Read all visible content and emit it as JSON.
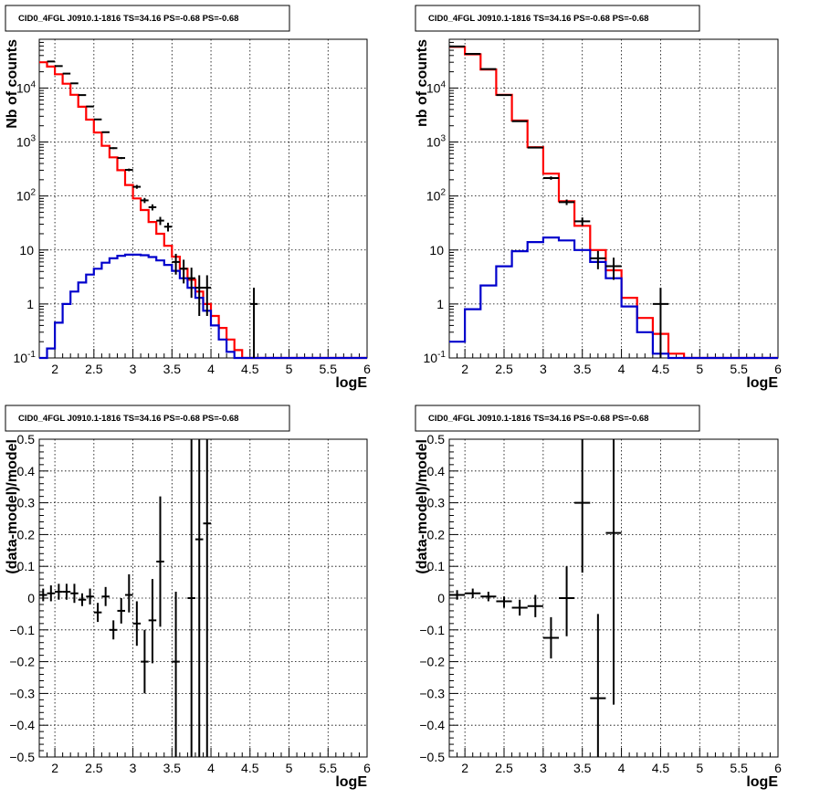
{
  "page": {
    "background": "#ffffff",
    "grid_color": "#000000"
  },
  "chart_data": [
    {
      "type": "line",
      "title": "CID0_4FGL J0910.1-1816 TS=34.16 PS=-0.68 PS=-0.68",
      "xlabel": "logE",
      "ylabel": "Nb of counts",
      "xlim": [
        1.8,
        6
      ],
      "ylim": [
        0.1,
        80000
      ],
      "log_y": true,
      "grid": true,
      "x_ticks": [
        "2",
        "2.5",
        "3",
        "3.5",
        "4",
        "4.5",
        "5",
        "5.5",
        "6"
      ],
      "y_ticks": [
        "10^-1",
        "1",
        "10",
        "10^2",
        "10^3",
        "10^4"
      ],
      "bin_edges": [
        1.8,
        1.9,
        2.0,
        2.1,
        2.2,
        2.3,
        2.4,
        2.5,
        2.6,
        2.7,
        2.8,
        2.9,
        3.0,
        3.1,
        3.2,
        3.3,
        3.4,
        3.5,
        3.6,
        3.7,
        3.8,
        3.9,
        4.0,
        4.1,
        4.2,
        4.3,
        4.4,
        4.5,
        4.6,
        4.7,
        4.8,
        4.9,
        5.0,
        5.1,
        5.2,
        5.3,
        5.4,
        5.5,
        5.6,
        5.7,
        5.8,
        5.9,
        6.0
      ],
      "series": [
        {
          "role": "total_model",
          "color": "#ff0000",
          "values": [
            30000,
            25000,
            18000,
            12000,
            7500,
            4500,
            2600,
            1500,
            850,
            520,
            300,
            160,
            90,
            55,
            33,
            20,
            12,
            7.5,
            4.5,
            2.8,
            1.7,
            1.0,
            0.6,
            0.36,
            0.22,
            0.14,
            0.1,
            0.1,
            0.1,
            0.1,
            0.1,
            0.1,
            0.1,
            0.1,
            0.1,
            0.1,
            0.1,
            0.1,
            0.1,
            0.1,
            0.1,
            0.1
          ]
        },
        {
          "role": "source_model",
          "color": "#0000cc",
          "values": [
            0.1,
            0.15,
            0.45,
            1.0,
            1.7,
            2.5,
            3.5,
            4.5,
            5.8,
            7.0,
            7.8,
            8.2,
            8.2,
            8.0,
            7.4,
            6.4,
            5.3,
            4.1,
            3.0,
            2.0,
            1.3,
            0.75,
            0.4,
            0.22,
            0.13,
            0.1,
            0.1,
            0.1,
            0.1,
            0.1,
            0.1,
            0.1,
            0.1,
            0.1,
            0.1,
            0.1,
            0.1,
            0.1,
            0.1,
            0.1,
            0.1,
            0.1
          ]
        }
      ],
      "points": [
        {
          "x": 1.95,
          "y": 31000,
          "err": 170
        },
        {
          "x": 2.05,
          "y": 25500,
          "err": 160
        },
        {
          "x": 2.15,
          "y": 18500,
          "err": 136
        },
        {
          "x": 2.25,
          "y": 12200,
          "err": 110
        },
        {
          "x": 2.35,
          "y": 7400,
          "err": 86
        },
        {
          "x": 2.45,
          "y": 4550,
          "err": 67
        },
        {
          "x": 2.55,
          "y": 2620,
          "err": 51
        },
        {
          "x": 2.65,
          "y": 1520,
          "err": 39
        },
        {
          "x": 2.75,
          "y": 770,
          "err": 28
        },
        {
          "x": 2.85,
          "y": 505,
          "err": 22
        },
        {
          "x": 2.95,
          "y": 305,
          "err": 17
        },
        {
          "x": 3.05,
          "y": 148,
          "err": 12
        },
        {
          "x": 3.15,
          "y": 83,
          "err": 9
        },
        {
          "x": 3.25,
          "y": 62,
          "err": 8
        },
        {
          "x": 3.35,
          "y": 35,
          "err": 6
        },
        {
          "x": 3.45,
          "y": 27,
          "err": 5
        },
        {
          "x": 3.55,
          "y": 6,
          "err": 2.5
        },
        {
          "x": 3.65,
          "y": 4.5,
          "err": 2.1
        },
        {
          "x": 3.75,
          "y": 3,
          "err": 1.7
        },
        {
          "x": 3.85,
          "y": 2,
          "err": 1.4
        },
        {
          "x": 3.95,
          "y": 2,
          "err": 1.4
        },
        {
          "x": 4.55,
          "y": 1,
          "err": 1.0
        }
      ]
    },
    {
      "type": "line",
      "title": "CID0_4FGL J0910.1-1816 TS=34.16 PS=-0.68 PS=-0.68",
      "xlabel": "logE",
      "ylabel": "nb of counts",
      "xlim": [
        1.8,
        6
      ],
      "ylim": [
        0.1,
        80000
      ],
      "log_y": true,
      "grid": true,
      "x_ticks": [
        "2",
        "2.5",
        "3",
        "3.5",
        "4",
        "4.5",
        "5",
        "5.5",
        "6"
      ],
      "y_ticks": [
        "10^-1",
        "1",
        "10",
        "10^2",
        "10^3",
        "10^4"
      ],
      "bin_edges": [
        1.8,
        2.0,
        2.2,
        2.4,
        2.6,
        2.8,
        3.0,
        3.2,
        3.4,
        3.6,
        3.8,
        4.0,
        4.2,
        4.4,
        4.6,
        4.8,
        5.0,
        5.2,
        5.4,
        5.6,
        5.8,
        6.0
      ],
      "series": [
        {
          "role": "total_model",
          "color": "#ff0000",
          "values": [
            58000,
            42000,
            22000,
            7500,
            2500,
            800,
            260,
            80,
            28,
            10,
            4.2,
            1.3,
            0.55,
            0.28,
            0.12,
            0.1,
            0.1,
            0.1,
            0.1,
            0.1,
            0.1
          ]
        },
        {
          "role": "source_model",
          "color": "#0000cc",
          "values": [
            0.2,
            0.8,
            2.2,
            5,
            9.5,
            14,
            17,
            15,
            10,
            6,
            3,
            0.9,
            0.3,
            0.12,
            0.1,
            0.1,
            0.1,
            0.1,
            0.1,
            0.1,
            0.1
          ]
        }
      ],
      "points": [
        {
          "x": 1.9,
          "y": 59000,
          "err": 240
        },
        {
          "x": 2.1,
          "y": 43000,
          "err": 207
        },
        {
          "x": 2.3,
          "y": 22500,
          "err": 150
        },
        {
          "x": 2.5,
          "y": 7400,
          "err": 86
        },
        {
          "x": 2.7,
          "y": 2430,
          "err": 49
        },
        {
          "x": 2.9,
          "y": 790,
          "err": 28
        },
        {
          "x": 3.1,
          "y": 215,
          "err": 15
        },
        {
          "x": 3.3,
          "y": 77,
          "err": 9
        },
        {
          "x": 3.5,
          "y": 34,
          "err": 6
        },
        {
          "x": 3.7,
          "y": 7,
          "err": 2.6
        },
        {
          "x": 3.9,
          "y": 5,
          "err": 2.2
        },
        {
          "x": 4.5,
          "y": 1,
          "err": 1.0
        }
      ]
    },
    {
      "type": "scatter",
      "title": "CID0_4FGL J0910.1-1816 TS=34.16 PS=-0.68 PS=-0.68",
      "xlabel": "logE",
      "ylabel": "(data-model)/model",
      "xlim": [
        1.8,
        6
      ],
      "ylim": [
        -0.5,
        0.5
      ],
      "grid": true,
      "x_ticks": [
        "2",
        "2.5",
        "3",
        "3.5",
        "4",
        "4.5",
        "5",
        "5.5",
        "6"
      ],
      "y_ticks": [
        "-0.5",
        "-0.4",
        "-0.3",
        "-0.2",
        "-0.1",
        "0",
        "0.1",
        "0.2",
        "0.3",
        "0.4",
        "0.5"
      ],
      "x_half_width": 0.05,
      "points": [
        {
          "x": 1.85,
          "y": 0.01,
          "lo": -0.01,
          "hi": 0.03
        },
        {
          "x": 1.95,
          "y": 0.015,
          "lo": -0.01,
          "hi": 0.04
        },
        {
          "x": 2.05,
          "y": 0.02,
          "lo": -0.005,
          "hi": 0.045
        },
        {
          "x": 2.15,
          "y": 0.02,
          "lo": -0.005,
          "hi": 0.045
        },
        {
          "x": 2.25,
          "y": 0.015,
          "lo": -0.015,
          "hi": 0.045
        },
        {
          "x": 2.35,
          "y": -0.005,
          "lo": -0.025,
          "hi": 0.015
        },
        {
          "x": 2.45,
          "y": 0.005,
          "lo": -0.02,
          "hi": 0.03
        },
        {
          "x": 2.55,
          "y": -0.045,
          "lo": -0.075,
          "hi": -0.015
        },
        {
          "x": 2.65,
          "y": 0.005,
          "lo": -0.025,
          "hi": 0.035
        },
        {
          "x": 2.75,
          "y": -0.1,
          "lo": -0.13,
          "hi": -0.07
        },
        {
          "x": 2.85,
          "y": -0.04,
          "lo": -0.08,
          "hi": 0.0
        },
        {
          "x": 2.95,
          "y": 0.01,
          "lo": -0.045,
          "hi": 0.075
        },
        {
          "x": 3.05,
          "y": -0.08,
          "lo": -0.15,
          "hi": -0.01
        },
        {
          "x": 3.15,
          "y": -0.2,
          "lo": -0.3,
          "hi": -0.1
        },
        {
          "x": 3.25,
          "y": -0.07,
          "lo": -0.205,
          "hi": 0.06
        },
        {
          "x": 3.35,
          "y": 0.115,
          "lo": -0.09,
          "hi": 0.32
        },
        {
          "x": 3.55,
          "y": -0.2,
          "lo": -0.5,
          "hi": 0.02
        },
        {
          "x": 3.75,
          "y": 0.0,
          "lo": -0.5,
          "hi": 0.5
        },
        {
          "x": 3.85,
          "y": 0.185,
          "lo": -0.5,
          "hi": 0.5
        },
        {
          "x": 3.95,
          "y": 0.235,
          "lo": -0.5,
          "hi": 0.5
        }
      ]
    },
    {
      "type": "scatter",
      "title": "CID0_4FGL J0910.1-1816 TS=34.16 PS=-0.68 PS=-0.68",
      "xlabel": "logE",
      "ylabel": "(data-model)/model",
      "xlim": [
        1.8,
        6
      ],
      "ylim": [
        -0.5,
        0.5
      ],
      "grid": true,
      "x_ticks": [
        "2",
        "2.5",
        "3",
        "3.5",
        "4",
        "4.5",
        "5",
        "5.5",
        "6"
      ],
      "y_ticks": [
        "-0.5",
        "-0.4",
        "-0.3",
        "-0.2",
        "-0.1",
        "0",
        "0.1",
        "0.2",
        "0.3",
        "0.4",
        "0.5"
      ],
      "x_half_width": 0.1,
      "points": [
        {
          "x": 1.9,
          "y": 0.01,
          "lo": -0.005,
          "hi": 0.025
        },
        {
          "x": 2.1,
          "y": 0.015,
          "lo": 0.0,
          "hi": 0.03
        },
        {
          "x": 2.3,
          "y": 0.005,
          "lo": -0.01,
          "hi": 0.02
        },
        {
          "x": 2.5,
          "y": -0.01,
          "lo": -0.03,
          "hi": 0.005
        },
        {
          "x": 2.7,
          "y": -0.03,
          "lo": -0.055,
          "hi": -0.005
        },
        {
          "x": 2.9,
          "y": -0.025,
          "lo": -0.06,
          "hi": 0.01
        },
        {
          "x": 3.1,
          "y": -0.125,
          "lo": -0.19,
          "hi": -0.06
        },
        {
          "x": 3.3,
          "y": 0.0,
          "lo": -0.12,
          "hi": 0.1
        },
        {
          "x": 3.5,
          "y": 0.3,
          "lo": 0.08,
          "hi": 0.5
        },
        {
          "x": 3.7,
          "y": -0.315,
          "lo": -0.5,
          "hi": -0.05
        },
        {
          "x": 3.9,
          "y": 0.205,
          "lo": -0.335,
          "hi": 0.5
        }
      ]
    }
  ]
}
